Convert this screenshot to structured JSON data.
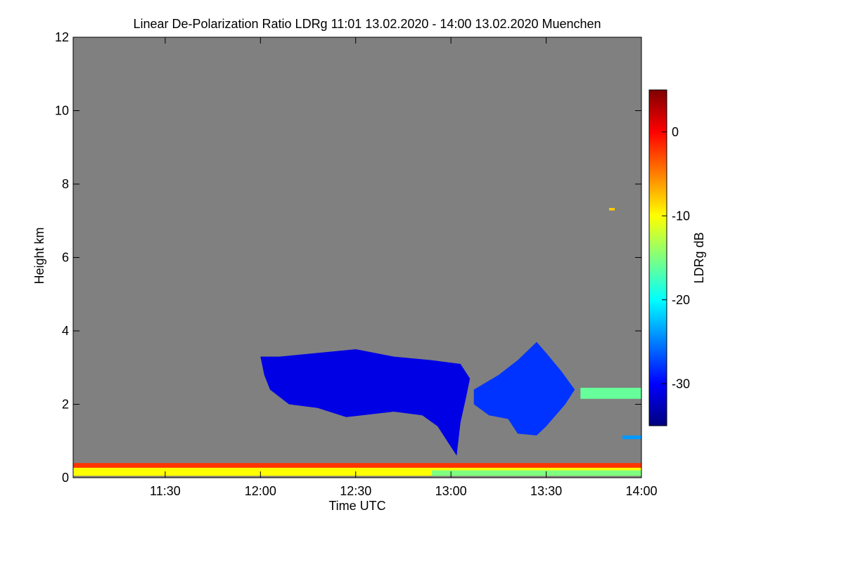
{
  "chart_data": {
    "type": "heatmap",
    "title": "Linear De-Polarization Ratio LDRg   11:01 13.02.2020 - 14:00 13.02.2020 Muenchen",
    "xlabel": "Time UTC",
    "ylabel": "Height km",
    "colorbar_label": "LDRg dB",
    "x_range_hours": [
      11.0167,
      14.0
    ],
    "y_range_km": [
      0,
      12
    ],
    "color_range_db": [
      -35,
      5
    ],
    "x_ticks": [
      {
        "hour": 11.5,
        "label": "11:30"
      },
      {
        "hour": 12.0,
        "label": "12:00"
      },
      {
        "hour": 12.5,
        "label": "12:30"
      },
      {
        "hour": 13.0,
        "label": "13:00"
      },
      {
        "hour": 13.5,
        "label": "13:30"
      },
      {
        "hour": 14.0,
        "label": "14:00"
      }
    ],
    "y_ticks": [
      {
        "km": 0,
        "label": "0"
      },
      {
        "km": 2,
        "label": "2"
      },
      {
        "km": 4,
        "label": "4"
      },
      {
        "km": 6,
        "label": "6"
      },
      {
        "km": 8,
        "label": "8"
      },
      {
        "km": 10,
        "label": "10"
      },
      {
        "km": 12,
        "label": "12"
      }
    ],
    "colorbar_ticks": [
      {
        "db": 0,
        "label": "0"
      },
      {
        "db": -10,
        "label": "-10"
      },
      {
        "db": -20,
        "label": "-20"
      },
      {
        "db": -30,
        "label": "-30"
      }
    ],
    "background_color": "#808080",
    "colormap": [
      "#00007f",
      "#0000ff",
      "#007fff",
      "#00ffff",
      "#7fff7f",
      "#ffff00",
      "#ff7f00",
      "#ff0000",
      "#7f0000"
    ],
    "features": [
      {
        "name": "cloud-main",
        "ldr_db": -31,
        "outline": [
          [
            12.0,
            3.3
          ],
          [
            12.1,
            3.3
          ],
          [
            12.3,
            3.4
          ],
          [
            12.5,
            3.5
          ],
          [
            12.7,
            3.3
          ],
          [
            12.9,
            3.2
          ],
          [
            13.05,
            3.1
          ],
          [
            13.1,
            2.7
          ],
          [
            13.08,
            2.2
          ],
          [
            13.05,
            1.5
          ],
          [
            13.03,
            0.6
          ],
          [
            12.98,
            1.0
          ],
          [
            12.93,
            1.4
          ],
          [
            12.85,
            1.7
          ],
          [
            12.7,
            1.8
          ],
          [
            12.45,
            1.65
          ],
          [
            12.3,
            1.9
          ],
          [
            12.15,
            2.0
          ],
          [
            12.05,
            2.4
          ],
          [
            12.02,
            2.8
          ]
        ]
      },
      {
        "name": "cloud-east",
        "ldr_db": -28,
        "outline": [
          [
            13.12,
            2.4
          ],
          [
            13.25,
            2.8
          ],
          [
            13.35,
            3.2
          ],
          [
            13.45,
            3.7
          ],
          [
            13.5,
            3.4
          ],
          [
            13.58,
            2.9
          ],
          [
            13.65,
            2.4
          ],
          [
            13.6,
            2.0
          ],
          [
            13.5,
            1.4
          ],
          [
            13.45,
            1.15
          ],
          [
            13.35,
            1.2
          ],
          [
            13.3,
            1.6
          ],
          [
            13.2,
            1.7
          ],
          [
            13.12,
            2.0
          ]
        ]
      },
      {
        "name": "boundary-layer-red",
        "ldr_db": -2,
        "outline": [
          [
            11.0167,
            0.27
          ],
          [
            14.0,
            0.27
          ],
          [
            14.0,
            0.4
          ],
          [
            11.0167,
            0.4
          ]
        ]
      },
      {
        "name": "boundary-layer-yellow",
        "ldr_db": -10,
        "outline": [
          [
            11.0167,
            0.05
          ],
          [
            14.0,
            0.05
          ],
          [
            14.0,
            0.27
          ],
          [
            11.0167,
            0.27
          ]
        ]
      },
      {
        "name": "boundary-layer-green",
        "ldr_db": -15,
        "outline": [
          [
            12.9,
            0.05
          ],
          [
            14.0,
            0.05
          ],
          [
            14.0,
            0.2
          ],
          [
            12.9,
            0.2
          ]
        ]
      },
      {
        "name": "layer-east-2km",
        "ldr_db": -16,
        "outline": [
          [
            13.68,
            2.15
          ],
          [
            14.0,
            2.15
          ],
          [
            14.0,
            2.45
          ],
          [
            13.68,
            2.45
          ]
        ]
      },
      {
        "name": "layer-east-1km",
        "ldr_db": -24,
        "outline": [
          [
            13.9,
            1.05
          ],
          [
            14.0,
            1.05
          ],
          [
            14.0,
            1.15
          ],
          [
            13.9,
            1.15
          ]
        ]
      },
      {
        "name": "speckle-7km",
        "ldr_db": -8,
        "outline": [
          [
            13.83,
            7.28
          ],
          [
            13.86,
            7.28
          ],
          [
            13.86,
            7.35
          ],
          [
            13.83,
            7.35
          ]
        ]
      }
    ]
  }
}
